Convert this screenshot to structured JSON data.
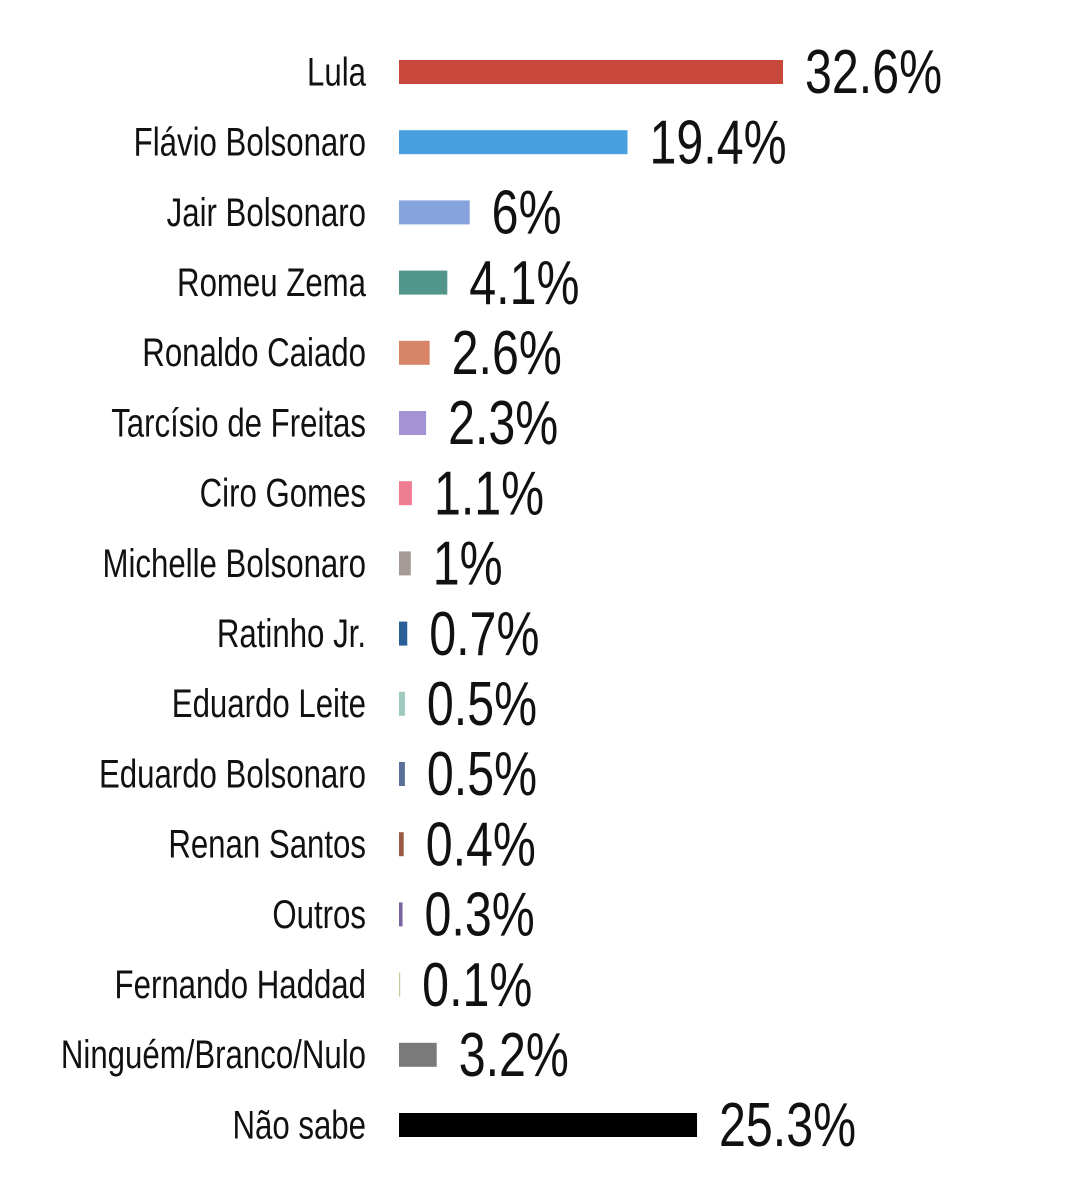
{
  "chart_data": {
    "type": "bar",
    "orientation": "horizontal",
    "categories": [
      "Lula",
      "Flávio Bolsonaro",
      "Jair Bolsonaro",
      "Romeu Zema",
      "Ronaldo Caiado",
      "Tarcísio de Freitas",
      "Ciro Gomes",
      "Michelle Bolsonaro",
      "Ratinho Jr.",
      "Eduardo Leite",
      "Eduardo Bolsonaro",
      "Renan Santos",
      "Outros",
      "Fernando Haddad",
      "Ninguém/Branco/Nulo",
      "Não sabe"
    ],
    "values": [
      32.6,
      19.4,
      6,
      4.1,
      2.6,
      2.3,
      1.1,
      1,
      0.7,
      0.5,
      0.5,
      0.4,
      0.3,
      0.1,
      3.2,
      25.3
    ],
    "value_labels": [
      "32.6%",
      "19.4%",
      "6%",
      "4.1%",
      "2.6%",
      "2.3%",
      "1.1%",
      "1%",
      "0.7%",
      "0.5%",
      "0.5%",
      "0.4%",
      "0.3%",
      "0.1%",
      "3.2%",
      "25.3%"
    ],
    "colors": [
      "#c8473b",
      "#4a9fdf",
      "#87a3dc",
      "#52958a",
      "#d88466",
      "#a493d4",
      "#ef7d91",
      "#a59a95",
      "#2a5f98",
      "#9fc8bf",
      "#5a6f9a",
      "#9a5a44",
      "#7a64a0",
      "#c8c8a0",
      "#7a7a7a",
      "#000000"
    ]
  }
}
